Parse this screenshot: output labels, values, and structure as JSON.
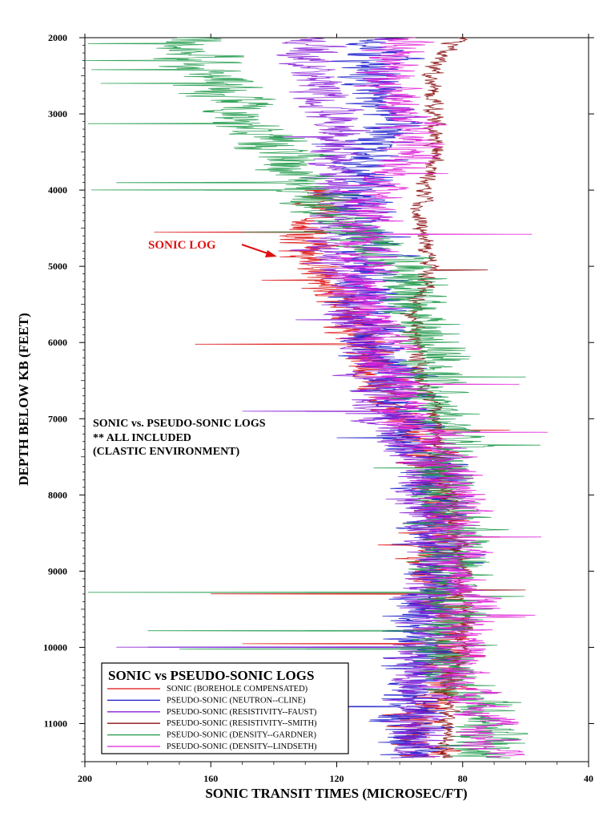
{
  "chart_data": {
    "type": "line",
    "title": "",
    "xlabel": "SONIC TRANSIT TIMES (MICROSEC/FT)",
    "ylabel": "DEPTH BELOW KB (FEET)",
    "xlim": [
      200,
      40
    ],
    "ylim": [
      2000,
      11500
    ],
    "x_ticks": [
      200,
      160,
      120,
      80,
      40
    ],
    "y_ticks": [
      2000,
      3000,
      4000,
      5000,
      6000,
      7000,
      8000,
      9000,
      10000,
      11000
    ],
    "y_reversed": true,
    "grid": false,
    "legend": {
      "title": "SONIC vs PSEUDO-SONIC LOGS",
      "placement": "bottom-left"
    },
    "annotations": {
      "callout": "SONIC LOG",
      "callout_target": {
        "x": 140,
        "y": 4870
      },
      "note_lines": [
        "SONIC vs. PSEUDO-SONIC LOGS",
        "** ALL INCLUDED",
        "(CLASTIC ENVIRONMENT)"
      ]
    },
    "series": [
      {
        "name": "SONIC (BOREHOLE COMPENSATED)",
        "color": "#dd1111",
        "trend": [
          [
            4000,
            122
          ],
          [
            4500,
            128
          ],
          [
            4900,
            130
          ],
          [
            5200,
            122
          ],
          [
            5600,
            118
          ],
          [
            6000,
            112
          ],
          [
            6500,
            108
          ],
          [
            7000,
            100
          ],
          [
            7500,
            90
          ],
          [
            8000,
            88
          ],
          [
            8500,
            88
          ],
          [
            9000,
            88
          ],
          [
            9500,
            85
          ],
          [
            10000,
            85
          ],
          [
            10500,
            85
          ],
          [
            11000,
            95
          ],
          [
            11450,
            92
          ]
        ],
        "noise": 7,
        "spikes": [
          [
            6020,
            165
          ],
          [
            4550,
            178
          ],
          [
            9300,
            160
          ],
          [
            7150,
            65
          ],
          [
            9950,
            150
          ]
        ]
      },
      {
        "name": "PSEUDO-SONIC (NEUTRON--CLINE)",
        "color": "#1a1acc",
        "trend": [
          [
            2000,
            110
          ],
          [
            2500,
            108
          ],
          [
            3000,
            104
          ],
          [
            3500,
            108
          ],
          [
            4000,
            112
          ],
          [
            4500,
            110
          ],
          [
            5000,
            110
          ],
          [
            5500,
            110
          ],
          [
            6000,
            108
          ],
          [
            6500,
            100
          ],
          [
            7000,
            98
          ],
          [
            7500,
            92
          ],
          [
            8000,
            90
          ],
          [
            8500,
            88
          ],
          [
            9000,
            88
          ],
          [
            9500,
            90
          ],
          [
            10000,
            92
          ],
          [
            10500,
            93
          ],
          [
            11000,
            98
          ],
          [
            11450,
            95
          ]
        ],
        "noise": 9,
        "spikes": [
          [
            10000,
            180
          ],
          [
            10780,
            145
          ],
          [
            7250,
            120
          ],
          [
            3400,
            128
          ]
        ]
      },
      {
        "name": "PSEUDO-SONIC (RESISTIVITY--FAUST)",
        "color": "#8a1fd6",
        "trend": [
          [
            2000,
            130
          ],
          [
            2600,
            126
          ],
          [
            3200,
            120
          ],
          [
            3800,
            120
          ],
          [
            4200,
            120
          ],
          [
            4800,
            124
          ],
          [
            5200,
            118
          ],
          [
            5600,
            116
          ],
          [
            6000,
            110
          ],
          [
            6500,
            108
          ],
          [
            7000,
            104
          ],
          [
            7500,
            95
          ],
          [
            8000,
            92
          ],
          [
            8500,
            90
          ],
          [
            9000,
            90
          ],
          [
            9500,
            90
          ],
          [
            10000,
            92
          ],
          [
            10500,
            95
          ],
          [
            11000,
            95
          ],
          [
            11450,
            95
          ]
        ],
        "noise": 8,
        "spikes": [
          [
            10000,
            190
          ],
          [
            6900,
            150
          ],
          [
            3300,
            140
          ]
        ]
      },
      {
        "name": "PSEUDO-SONIC (RESISTIVITY--SMITH)",
        "color": "#8b1010",
        "trend": [
          [
            2000,
            82
          ],
          [
            2400,
            90
          ],
          [
            3000,
            90
          ],
          [
            3500,
            88
          ],
          [
            4000,
            93
          ],
          [
            4500,
            93
          ],
          [
            5000,
            90
          ],
          [
            5500,
            95
          ],
          [
            6000,
            95
          ],
          [
            6500,
            93
          ],
          [
            7000,
            88
          ],
          [
            7500,
            88
          ],
          [
            8000,
            84
          ],
          [
            8500,
            82
          ],
          [
            9000,
            80
          ],
          [
            9500,
            80
          ],
          [
            10000,
            80
          ],
          [
            10500,
            85
          ],
          [
            11000,
            85
          ],
          [
            11450,
            85
          ]
        ],
        "noise": 2.5,
        "spikes": [
          [
            8550,
            68
          ],
          [
            9250,
            60
          ],
          [
            5050,
            72
          ]
        ]
      },
      {
        "name": "PSEUDO-SONIC (DENSITY--GARDNER)",
        "color": "#1f9a4a",
        "trend": [
          [
            2000,
            165
          ],
          [
            2500,
            160
          ],
          [
            3000,
            150
          ],
          [
            3500,
            138
          ],
          [
            4000,
            130
          ],
          [
            4500,
            115
          ],
          [
            5000,
            100
          ],
          [
            5500,
            95
          ],
          [
            6000,
            90
          ],
          [
            6500,
            92
          ],
          [
            7000,
            88
          ],
          [
            7500,
            85
          ],
          [
            8000,
            85
          ],
          [
            8500,
            82
          ],
          [
            9000,
            82
          ],
          [
            9500,
            84
          ],
          [
            10000,
            85
          ],
          [
            10500,
            82
          ],
          [
            11000,
            72
          ],
          [
            11450,
            72
          ]
        ],
        "noise": 10,
        "spikes": [
          [
            2080,
            199
          ],
          [
            2300,
            200
          ],
          [
            2420,
            198
          ],
          [
            2600,
            195
          ],
          [
            3130,
            199
          ],
          [
            4000,
            198
          ],
          [
            3900,
            190
          ],
          [
            9280,
            199
          ],
          [
            9780,
            180
          ],
          [
            10020,
            170
          ],
          [
            4550,
            150
          ],
          [
            6450,
            60
          ]
        ]
      },
      {
        "name": "PSEUDO-SONIC (DENSITY--LINDSETH)",
        "color": "#e020d8",
        "trend": [
          [
            2000,
            100
          ],
          [
            2500,
            104
          ],
          [
            3000,
            98
          ],
          [
            3500,
            95
          ],
          [
            4000,
            110
          ],
          [
            4500,
            112
          ],
          [
            5000,
            114
          ],
          [
            5500,
            110
          ],
          [
            6000,
            106
          ],
          [
            6500,
            100
          ],
          [
            7000,
            98
          ],
          [
            7500,
            85
          ],
          [
            8000,
            82
          ],
          [
            8500,
            82
          ],
          [
            9000,
            82
          ],
          [
            9500,
            78
          ],
          [
            10000,
            80
          ],
          [
            10500,
            80
          ],
          [
            11000,
            72
          ],
          [
            11450,
            70
          ]
        ],
        "noise": 8,
        "spikes": [
          [
            4580,
            58
          ],
          [
            7180,
            53
          ],
          [
            8550,
            55
          ],
          [
            6550,
            62
          ],
          [
            9600,
            60
          ]
        ]
      }
    ]
  }
}
